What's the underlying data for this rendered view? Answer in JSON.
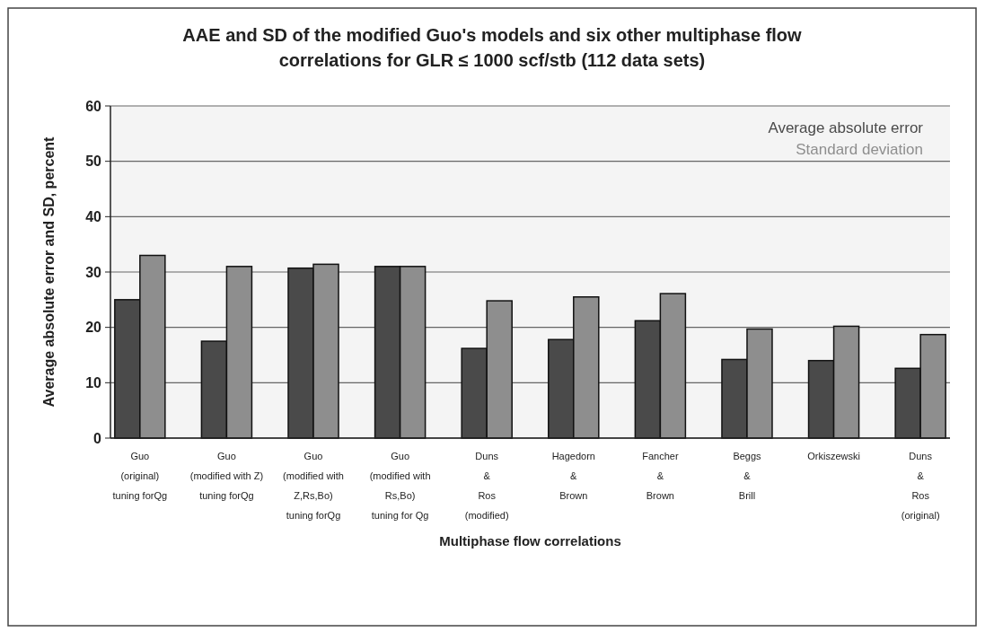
{
  "chart_data": {
    "type": "bar",
    "title": "AAE and SD of  the modified Guo's models and six other multiphase flow correlations for GLR ≤  1000 scf/stb (112 data sets)",
    "xlabel": "Multiphase flow correlations",
    "ylabel": "Average absolute error and SD, percent",
    "categories": [
      "Guo\n(original)\ntuning forQg",
      "Guo\n(modified with Z)\ntuning forQg",
      "Guo\n(modified with\nZ,Rs,Bo)\ntuning forQg",
      "Guo\n(modified with\nRs,Bo)\ntuning for Qg",
      "Duns\n&\nRos\n(modified)",
      "Hagedorn\n&\nBrown",
      "Fancher\n&\nBrown",
      "Beggs\n&\nBrill",
      "Orkiszewski",
      "Duns\n&\nRos\n(original)"
    ],
    "series": [
      {
        "name": "Average absolute error",
        "color": "#4a4a4a",
        "values": [
          25,
          17.5,
          30.7,
          31,
          16.2,
          17.8,
          21.2,
          14.2,
          14,
          12.6
        ]
      },
      {
        "name": "Standard deviation",
        "color": "#8e8e8e",
        "values": [
          33,
          31,
          31.4,
          31,
          24.8,
          25.5,
          26.1,
          19.7,
          20.2,
          18.7
        ]
      }
    ],
    "ylim": [
      0,
      60
    ],
    "yticks": [
      0,
      10,
      20,
      30,
      40,
      50,
      60
    ],
    "grid": "y",
    "legend": "top right"
  }
}
